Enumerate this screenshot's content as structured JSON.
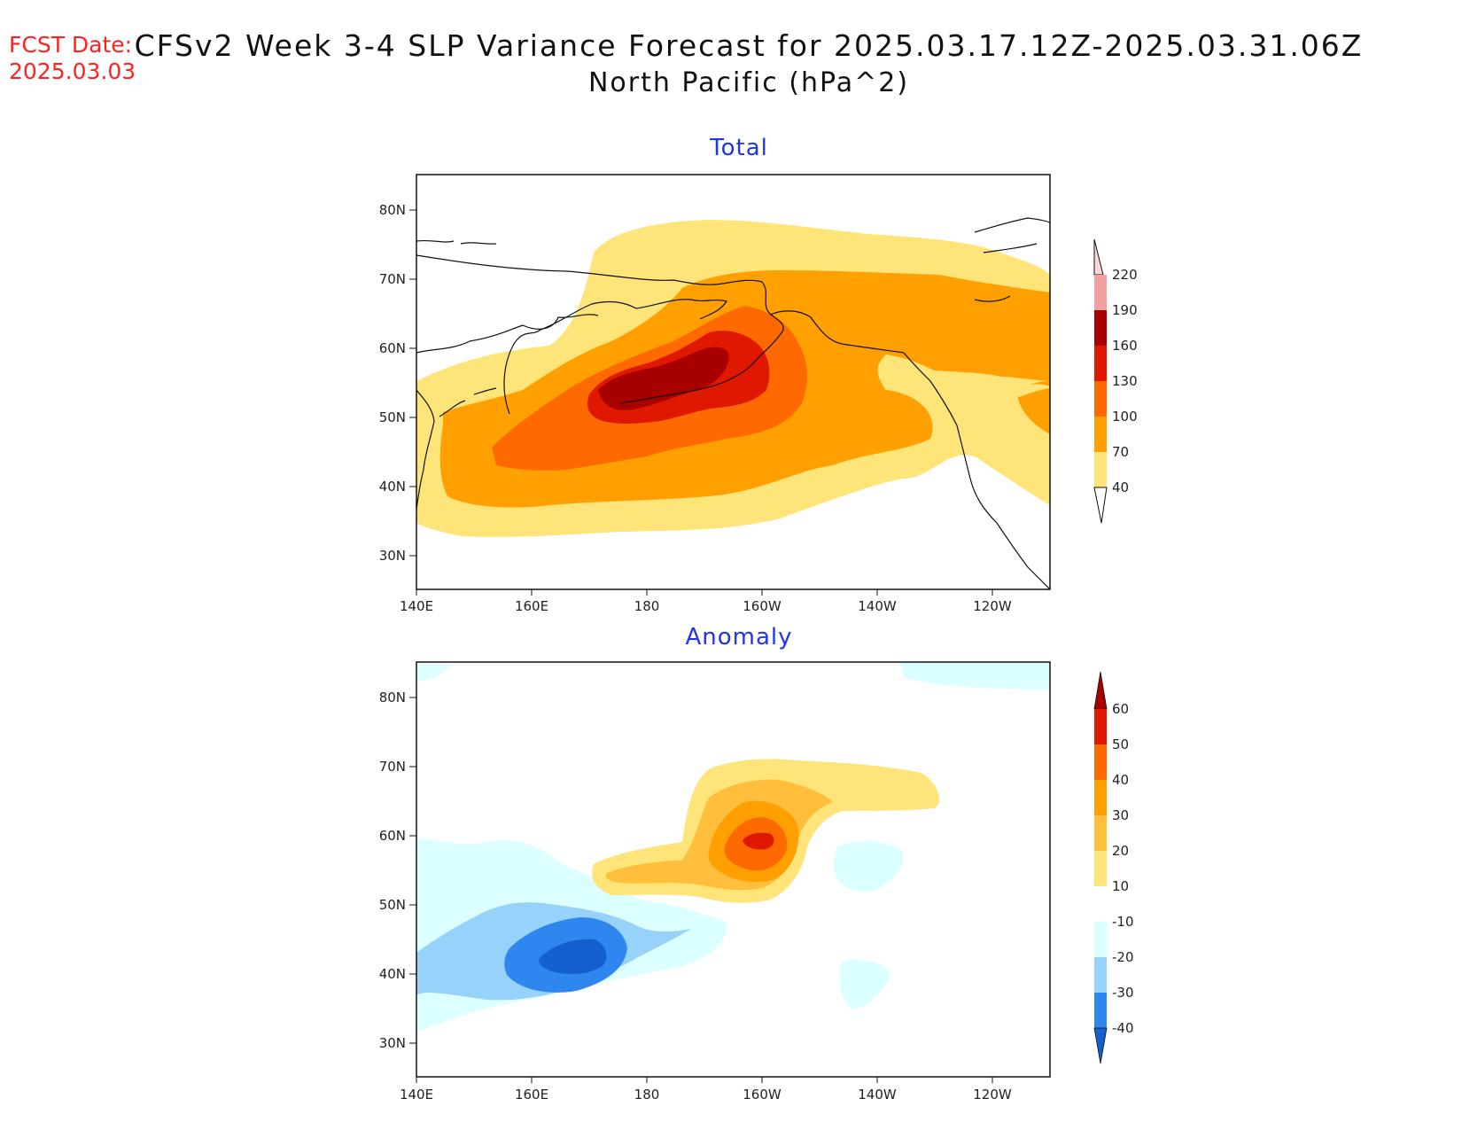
{
  "header": {
    "fcst_label": "FCST Date:",
    "fcst_date": "2025.03.03",
    "title": "CFSv2 Week 3-4 SLP Variance Forecast for 2025.03.17.12Z-2025.03.31.06Z",
    "subtitle": "North Pacific (hPa^2)"
  },
  "panels": [
    {
      "title": "Total",
      "lat_labels": [
        "80N",
        "70N",
        "60N",
        "50N",
        "40N",
        "30N"
      ],
      "lon_labels": [
        "140E",
        "160E",
        "180",
        "160W",
        "140W",
        "120W"
      ],
      "colorbar": {
        "labels": [
          "220",
          "190",
          "160",
          "130",
          "100",
          "70",
          "40"
        ],
        "colors": [
          "#fbd6d6",
          "#f2a0a0",
          "#a80000",
          "#e01800",
          "#ff6a00",
          "#ffa000",
          "#ffe47a"
        ]
      }
    },
    {
      "title": "Anomaly",
      "lat_labels": [
        "80N",
        "70N",
        "60N",
        "50N",
        "40N",
        "30N"
      ],
      "lon_labels": [
        "140E",
        "160E",
        "180",
        "160W",
        "140W",
        "120W"
      ],
      "colorbar": {
        "labels": [
          "60",
          "50",
          "40",
          "30",
          "20",
          "10",
          "-10",
          "-20",
          "-30",
          "-40"
        ],
        "colors": [
          "#a80000",
          "#e01800",
          "#ff6a00",
          "#ffa000",
          "#ffbf3c",
          "#ffe47a",
          "#ffffff",
          "#dcffff",
          "#96d2fa",
          "#2e86ee",
          "#1460d0"
        ]
      }
    }
  ]
}
